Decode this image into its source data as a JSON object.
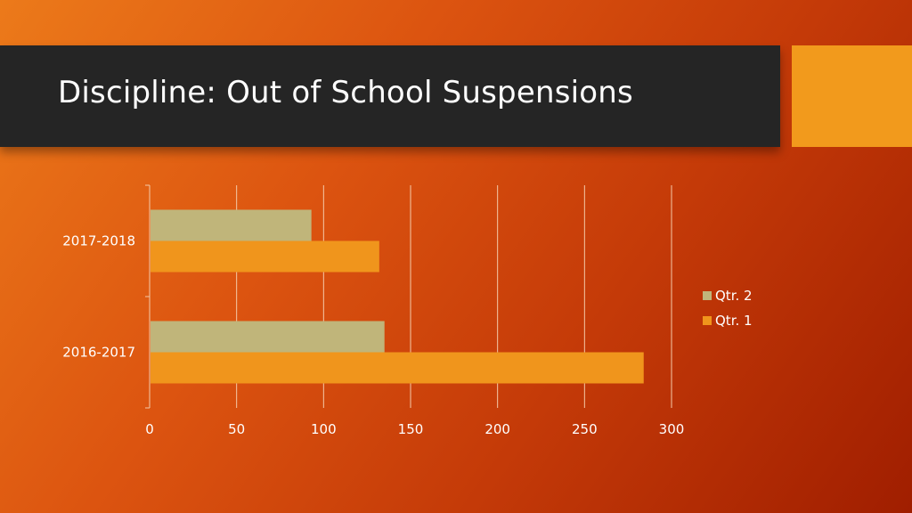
{
  "slide": {
    "title": "Discipline: Out of School Suspensions"
  },
  "colors": {
    "title_bar": "#252525",
    "accent_box": "#f29a1c",
    "qtr2": "#c0b57a",
    "qtr1": "#f0951c",
    "gridline": "#f4c9a8"
  },
  "chart_data": {
    "type": "bar",
    "orientation": "horizontal",
    "title": "",
    "xlabel": "",
    "ylabel": "",
    "categories": [
      "2017-2018",
      "2016-2017"
    ],
    "series": [
      {
        "name": "Qtr. 2",
        "values": [
          93,
          135
        ]
      },
      {
        "name": "Qtr. 1",
        "values": [
          132,
          284
        ]
      }
    ],
    "xlim": [
      0,
      300
    ],
    "xticks": [
      "0",
      "50",
      "100",
      "150",
      "200",
      "250",
      "300"
    ],
    "grid": true,
    "legend": "right"
  }
}
